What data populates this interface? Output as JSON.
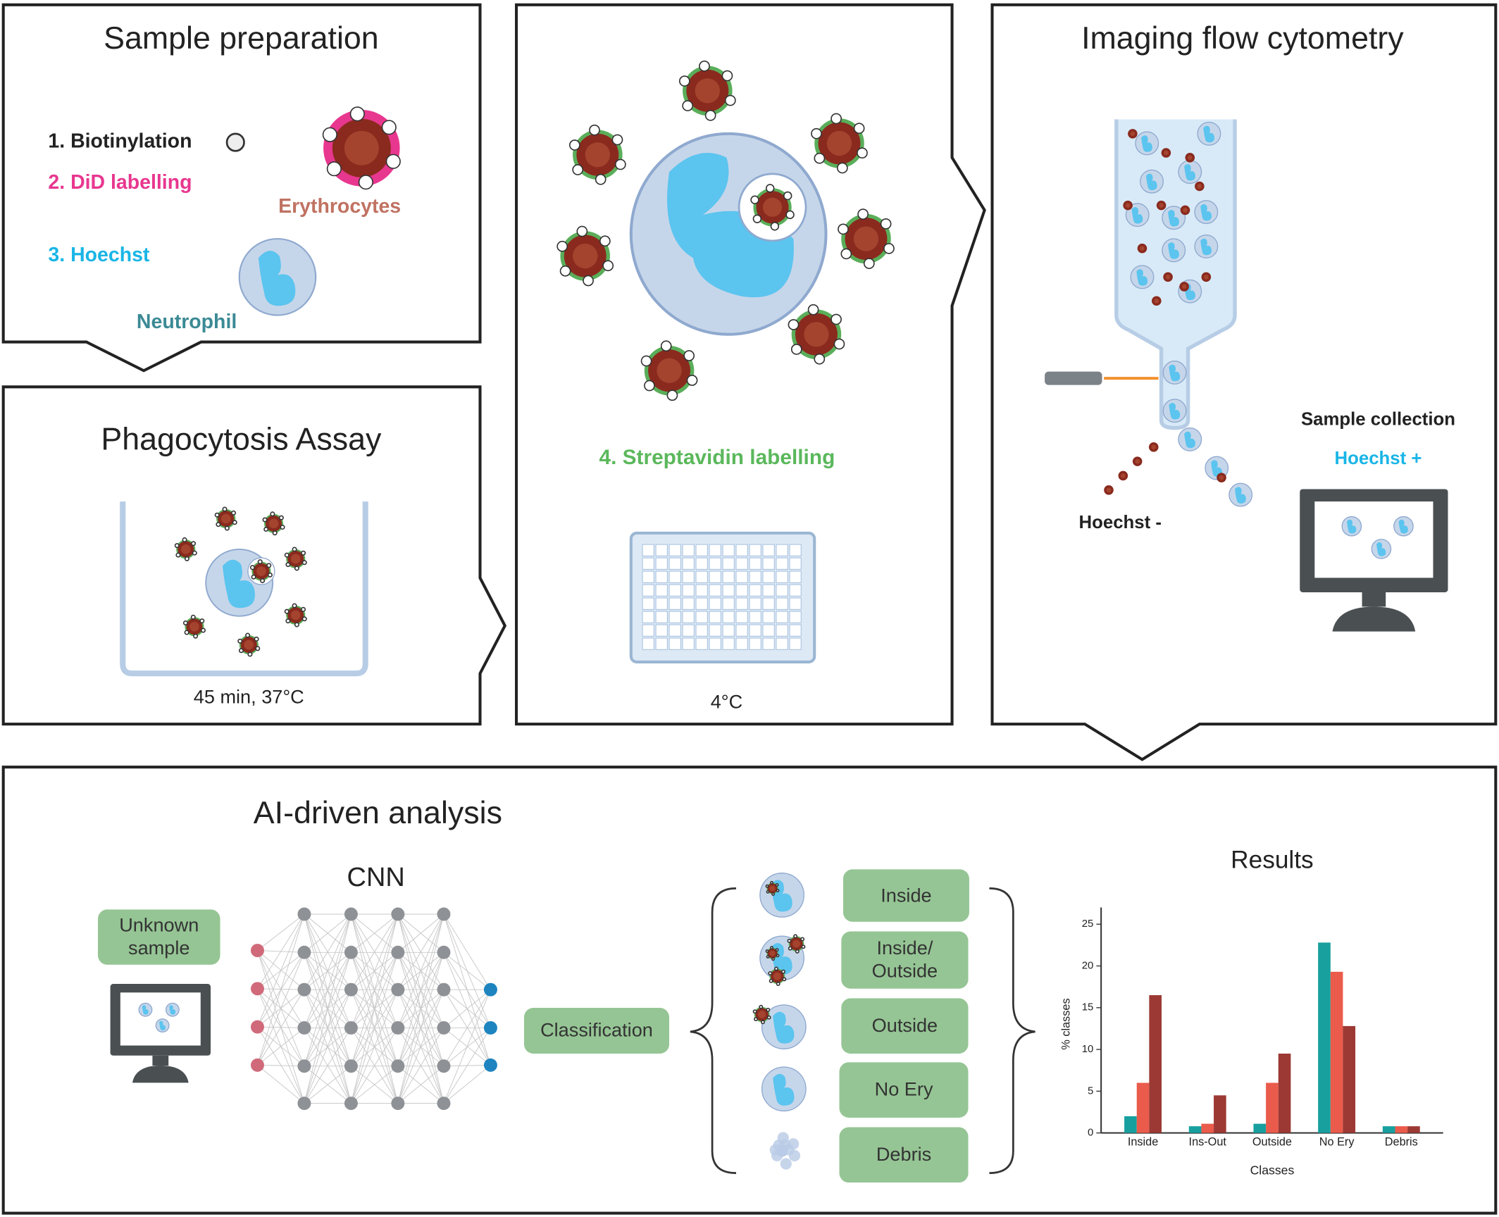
{
  "panels": {
    "sample_preparation": {
      "title": "Sample preparation",
      "steps": [
        "1. Biotinylation",
        "2. DiD labelling",
        "3. Hoechst"
      ],
      "erythrocytes": "Erythrocytes",
      "neutrophil": "Neutrophil"
    },
    "phagocytosis_assay": {
      "title": "Phagocytosis Assay",
      "condition": "45 min, 37°C"
    },
    "streptavidin": {
      "step": "4. Streptavidin labelling",
      "condition": "4°C"
    },
    "imaging_flow_cytometry": {
      "title": "Imaging flow cytometry",
      "sample_collection": "Sample collection",
      "hoechst_positive": "Hoechst +",
      "hoechst_negative": "Hoechst -"
    },
    "ai_analysis": {
      "title": "AI-driven analysis",
      "input": "Unknown sample",
      "network": "CNN",
      "step": "Classification",
      "classes": [
        "Inside",
        "Inside/ Outside",
        "Outside",
        "No Ery",
        "Debris"
      ]
    }
  },
  "chart_data": {
    "type": "bar",
    "title": "Results",
    "x_label": "Classes",
    "y_label": "% classes",
    "categories": [
      "Inside",
      "Ins-Out",
      "Outside",
      "No Ery",
      "Debris"
    ],
    "series": [
      {
        "color": "#17a09e",
        "values": [
          2,
          0.8,
          1.1,
          22.8,
          0.8
        ]
      },
      {
        "color": "#ea5b4b",
        "values": [
          6,
          1.1,
          6,
          19.3,
          0.8
        ]
      },
      {
        "color": "#9c3934",
        "values": [
          16.5,
          4.5,
          9.5,
          12.8,
          0.8
        ]
      }
    ],
    "ylim": [
      0,
      27
    ],
    "yticks": [
      0,
      5,
      10,
      15,
      20,
      25
    ]
  }
}
